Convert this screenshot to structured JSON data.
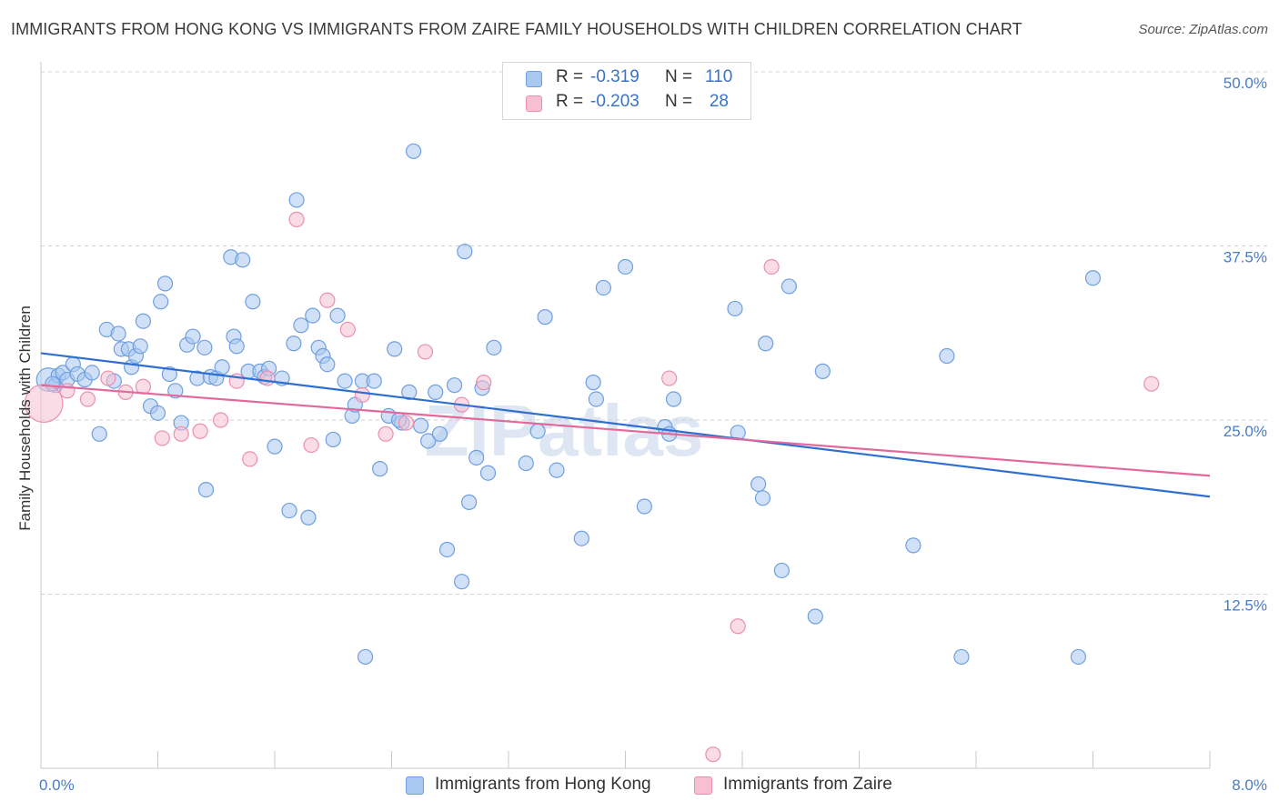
{
  "title": "IMMIGRANTS FROM HONG KONG VS IMMIGRANTS FROM ZAIRE FAMILY HOUSEHOLDS WITH CHILDREN CORRELATION CHART",
  "source": "Source: ZipAtlas.com",
  "watermark": "ZIPatlas",
  "legend_top": {
    "rows": [
      {
        "r_label": "R =",
        "r_value": "-0.319",
        "n_label": "N =",
        "n_value": "110"
      },
      {
        "r_label": "R =",
        "r_value": "-0.203",
        "n_label": "N =",
        "n_value": "28"
      }
    ]
  },
  "legend_bottom": {
    "items": [
      "Immigrants from Hong Kong",
      "Immigrants from Zaire"
    ]
  },
  "colors": {
    "series1_fill": "#a9c8f0",
    "series1_stroke": "#6f9fe0",
    "series1_line": "#2f6fcf",
    "series2_fill": "#f6bfd2",
    "series2_stroke": "#ea8fb0",
    "series2_line": "#e2699b",
    "tick_label": "#4a7cc7",
    "grid": "#d0d0d0"
  },
  "chart_data": {
    "type": "scatter",
    "ylabel": "Family Households with Children",
    "xlim": [
      0.0,
      8.0
    ],
    "ylim": [
      0.0,
      50.0
    ],
    "x_tick_labels": [
      "0.0%",
      "8.0%"
    ],
    "y_ticks": [
      12.5,
      25.0,
      37.5,
      50.0
    ],
    "y_tick_labels": [
      "12.5%",
      "25.0%",
      "37.5%",
      "50.0%"
    ],
    "grid": "horizontal dashed",
    "series": [
      {
        "name": "Immigrants from Hong Kong",
        "trend": {
          "x": [
            0.0,
            8.0
          ],
          "y": [
            29.8,
            19.5
          ]
        },
        "points": [
          [
            0.05,
            27.9,
            1.6
          ],
          [
            0.1,
            27.5,
            1
          ],
          [
            0.12,
            28.2,
            1
          ],
          [
            0.15,
            28.4,
            1
          ],
          [
            0.18,
            27.9,
            1
          ],
          [
            0.22,
            29.0,
            1
          ],
          [
            0.25,
            28.3,
            1
          ],
          [
            0.3,
            27.9,
            1
          ],
          [
            0.35,
            28.4,
            1
          ],
          [
            0.4,
            24.0,
            1
          ],
          [
            0.45,
            31.5,
            1
          ],
          [
            0.5,
            27.8,
            1
          ],
          [
            0.53,
            31.2,
            1
          ],
          [
            0.55,
            30.1,
            1
          ],
          [
            0.6,
            30.1,
            1
          ],
          [
            0.62,
            28.8,
            1
          ],
          [
            0.65,
            29.6,
            1
          ],
          [
            0.68,
            30.3,
            1
          ],
          [
            0.7,
            32.1,
            1
          ],
          [
            0.75,
            26.0,
            1
          ],
          [
            0.8,
            25.5,
            1
          ],
          [
            0.82,
            33.5,
            1
          ],
          [
            0.85,
            34.8,
            1
          ],
          [
            0.88,
            28.3,
            1
          ],
          [
            0.92,
            27.1,
            1
          ],
          [
            0.96,
            24.8,
            1
          ],
          [
            1.0,
            30.4,
            1
          ],
          [
            1.04,
            31.0,
            1
          ],
          [
            1.07,
            28.0,
            1
          ],
          [
            1.12,
            30.2,
            1
          ],
          [
            1.13,
            20.0,
            1
          ],
          [
            1.16,
            28.1,
            1
          ],
          [
            1.2,
            28.0,
            1
          ],
          [
            1.24,
            28.8,
            1
          ],
          [
            1.3,
            36.7,
            1
          ],
          [
            1.32,
            31.0,
            1
          ],
          [
            1.34,
            30.3,
            1
          ],
          [
            1.38,
            36.5,
            1
          ],
          [
            1.42,
            28.5,
            1
          ],
          [
            1.45,
            33.5,
            1
          ],
          [
            1.5,
            28.5,
            1
          ],
          [
            1.53,
            28.1,
            1
          ],
          [
            1.56,
            28.7,
            1
          ],
          [
            1.6,
            23.1,
            1
          ],
          [
            1.65,
            28.0,
            1
          ],
          [
            1.7,
            18.5,
            1
          ],
          [
            1.73,
            30.5,
            1
          ],
          [
            1.75,
            40.8,
            1
          ],
          [
            1.78,
            31.8,
            1
          ],
          [
            1.83,
            18.0,
            1
          ],
          [
            1.86,
            32.5,
            1
          ],
          [
            1.9,
            30.2,
            1
          ],
          [
            1.93,
            29.6,
            1
          ],
          [
            1.96,
            29.0,
            1
          ],
          [
            2.0,
            23.6,
            1
          ],
          [
            2.03,
            32.5,
            1
          ],
          [
            2.08,
            27.8,
            1
          ],
          [
            2.13,
            25.3,
            1
          ],
          [
            2.15,
            26.1,
            1
          ],
          [
            2.2,
            27.8,
            1
          ],
          [
            2.22,
            8.0,
            1
          ],
          [
            2.28,
            27.8,
            1
          ],
          [
            2.32,
            21.5,
            1
          ],
          [
            2.38,
            25.3,
            1
          ],
          [
            2.42,
            30.1,
            1
          ],
          [
            2.47,
            24.8,
            1
          ],
          [
            2.52,
            27.0,
            1
          ],
          [
            2.55,
            44.3,
            1
          ],
          [
            2.6,
            24.6,
            1
          ],
          [
            2.65,
            23.5,
            1
          ],
          [
            2.7,
            27.0,
            1
          ],
          [
            2.73,
            24.0,
            1
          ],
          [
            2.78,
            15.7,
            1
          ],
          [
            2.83,
            27.5,
            1
          ],
          [
            2.88,
            13.4,
            1
          ],
          [
            2.9,
            37.1,
            1
          ],
          [
            2.93,
            19.1,
            1
          ],
          [
            2.98,
            22.3,
            1
          ],
          [
            3.02,
            27.3,
            1
          ],
          [
            3.06,
            21.2,
            1
          ],
          [
            3.1,
            30.2,
            1
          ],
          [
            3.32,
            21.9,
            1
          ],
          [
            3.4,
            24.2,
            1
          ],
          [
            3.45,
            32.4,
            1
          ],
          [
            3.53,
            21.4,
            1
          ],
          [
            3.7,
            16.5,
            1
          ],
          [
            3.78,
            27.7,
            1
          ],
          [
            3.8,
            26.5,
            1
          ],
          [
            3.85,
            34.5,
            1
          ],
          [
            4.0,
            36.0,
            1
          ],
          [
            4.13,
            18.8,
            1
          ],
          [
            4.27,
            24.5,
            1
          ],
          [
            4.3,
            24.0,
            1
          ],
          [
            4.33,
            26.5,
            1
          ],
          [
            4.75,
            33.0,
            1
          ],
          [
            4.77,
            24.1,
            1
          ],
          [
            4.91,
            20.4,
            1
          ],
          [
            4.94,
            19.4,
            1
          ],
          [
            4.96,
            30.5,
            1
          ],
          [
            5.07,
            14.2,
            1
          ],
          [
            5.12,
            34.6,
            1
          ],
          [
            5.3,
            10.9,
            1
          ],
          [
            5.35,
            28.5,
            1
          ],
          [
            5.97,
            16.0,
            1
          ],
          [
            6.2,
            29.6,
            1
          ],
          [
            6.3,
            8.0,
            1
          ],
          [
            7.1,
            8.0,
            1
          ],
          [
            7.2,
            35.2,
            1
          ],
          [
            2.45,
            25.0,
            1
          ],
          [
            0.08,
            27.6,
            1
          ]
        ]
      },
      {
        "name": "Immigrants from Zaire",
        "trend": {
          "x": [
            0.0,
            8.0
          ],
          "y": [
            27.5,
            21.0
          ]
        },
        "points": [
          [
            0.02,
            26.2,
            2.6
          ],
          [
            0.18,
            27.1,
            1
          ],
          [
            0.32,
            26.5,
            1
          ],
          [
            0.46,
            28.0,
            1
          ],
          [
            0.58,
            27.0,
            1
          ],
          [
            0.7,
            27.4,
            1
          ],
          [
            0.83,
            23.7,
            1
          ],
          [
            0.96,
            24.0,
            1
          ],
          [
            1.09,
            24.2,
            1
          ],
          [
            1.23,
            25.0,
            1
          ],
          [
            1.34,
            27.8,
            1
          ],
          [
            1.43,
            22.2,
            1
          ],
          [
            1.55,
            28.0,
            1
          ],
          [
            1.75,
            39.4,
            1
          ],
          [
            1.85,
            23.2,
            1
          ],
          [
            1.96,
            33.6,
            1
          ],
          [
            2.1,
            31.5,
            1
          ],
          [
            2.2,
            26.8,
            1
          ],
          [
            2.36,
            24.0,
            1
          ],
          [
            2.5,
            24.8,
            1
          ],
          [
            2.63,
            29.9,
            1
          ],
          [
            2.88,
            26.1,
            1
          ],
          [
            3.03,
            27.7,
            1
          ],
          [
            4.3,
            28.0,
            1
          ],
          [
            5.0,
            36.0,
            1
          ],
          [
            4.77,
            10.2,
            1
          ],
          [
            4.6,
            1.0,
            1
          ],
          [
            7.6,
            27.6,
            1
          ]
        ]
      }
    ]
  }
}
